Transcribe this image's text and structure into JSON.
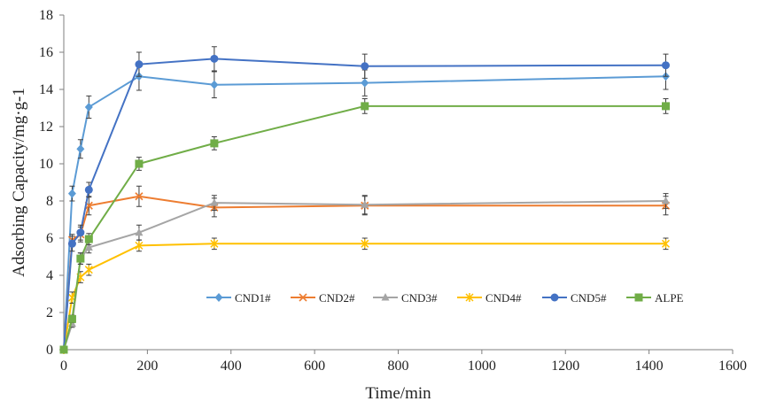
{
  "chart_data": {
    "type": "line",
    "title": "",
    "xlabel": "Time/min",
    "ylabel": "Adsorbing Capacity/mg·g-1",
    "xlim": [
      0,
      1600
    ],
    "ylim": [
      0,
      18
    ],
    "x_ticks": [
      0,
      200,
      400,
      600,
      800,
      1000,
      1200,
      1400,
      1600
    ],
    "y_ticks": [
      0,
      2,
      4,
      6,
      8,
      10,
      12,
      14,
      16,
      18
    ],
    "grid": false,
    "legend_position": "lower-center-inside",
    "series": [
      {
        "name": "CND1#",
        "color": "#5B9BD5",
        "marker": "diamond",
        "x": [
          0,
          20,
          40,
          60,
          180,
          360,
          720,
          1440
        ],
        "y": [
          0,
          8.4,
          10.8,
          13.05,
          14.7,
          14.25,
          14.35,
          14.7
        ],
        "err": [
          0,
          0.4,
          0.5,
          0.6,
          0.75,
          0.7,
          0.7,
          0.7
        ]
      },
      {
        "name": "CND2#",
        "color": "#ED7D31",
        "marker": "x",
        "x": [
          0,
          20,
          40,
          60,
          180,
          360,
          720,
          1440
        ],
        "y": [
          0,
          5.9,
          6.2,
          7.75,
          8.25,
          7.65,
          7.75,
          7.75
        ],
        "err": [
          0,
          0.3,
          0.4,
          0.5,
          0.55,
          0.5,
          0.5,
          0.5
        ]
      },
      {
        "name": "CND3#",
        "color": "#A5A5A5",
        "marker": "triangle",
        "x": [
          0,
          20,
          40,
          60,
          180,
          360,
          720,
          1440
        ],
        "y": [
          0,
          1.4,
          4.9,
          5.5,
          6.3,
          7.9,
          7.8,
          8.0
        ],
        "err": [
          0,
          0.2,
          0.3,
          0.3,
          0.4,
          0.4,
          0.5,
          0.4
        ]
      },
      {
        "name": "CND4#",
        "color": "#FFC000",
        "marker": "star",
        "x": [
          0,
          20,
          40,
          60,
          180,
          360,
          720,
          1440
        ],
        "y": [
          0,
          2.8,
          3.9,
          4.3,
          5.6,
          5.7,
          5.7,
          5.7
        ],
        "err": [
          0,
          0.3,
          0.3,
          0.3,
          0.3,
          0.3,
          0.3,
          0.3
        ]
      },
      {
        "name": "CND5#",
        "color": "#4472C4",
        "marker": "circle",
        "x": [
          0,
          20,
          40,
          60,
          180,
          360,
          720,
          1440
        ],
        "y": [
          0,
          5.7,
          6.3,
          8.6,
          15.35,
          15.65,
          15.25,
          15.3
        ],
        "err": [
          0,
          0.4,
          0.4,
          0.4,
          0.65,
          0.65,
          0.65,
          0.6
        ]
      },
      {
        "name": "ALPE",
        "color": "#70AD47",
        "marker": "square",
        "x": [
          0,
          20,
          40,
          60,
          180,
          360,
          720,
          1440
        ],
        "y": [
          0,
          1.65,
          4.9,
          5.95,
          10.0,
          11.1,
          13.1,
          13.1
        ],
        "err": [
          0,
          0.2,
          0.3,
          0.3,
          0.35,
          0.35,
          0.4,
          0.4
        ]
      }
    ]
  }
}
